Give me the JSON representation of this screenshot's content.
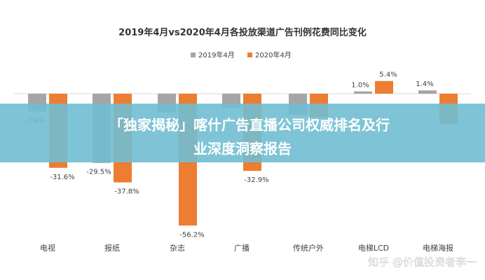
{
  "chart_data": {
    "type": "bar",
    "title": "2019年4月vs2020年4月各投放渠道广告刊例花费同比变化",
    "categories": [
      "电视",
      "报纸",
      "杂志",
      "广播",
      "传统户外",
      "电梯LCD",
      "电梯海报"
    ],
    "series": [
      {
        "name": "2019年4月",
        "color": "#a5a5a5",
        "values": [
          -7.6,
          -29.5,
          -8,
          -6,
          -9,
          1.0,
          1.4
        ],
        "value_labels": [
          "-7.6%",
          "-29.5%",
          null,
          null,
          null,
          "1.0%",
          "1.4%"
        ]
      },
      {
        "name": "2020年4月",
        "color": "#ed7d31",
        "values": [
          -31.6,
          -37.8,
          -56.2,
          -32.9,
          -10,
          5.4,
          -13
        ],
        "value_labels": [
          "-31.6%",
          "-37.8%",
          "-56.2%",
          "-32.9%",
          null,
          "5.4%",
          null
        ]
      }
    ],
    "ylim": [
      -60,
      8
    ]
  },
  "banner": {
    "lines": [
      "「独家揭秘」喀什广告直播公司权威排名及行",
      "业深度洞察报告"
    ]
  },
  "watermark": "知乎 @价值投资者李一"
}
